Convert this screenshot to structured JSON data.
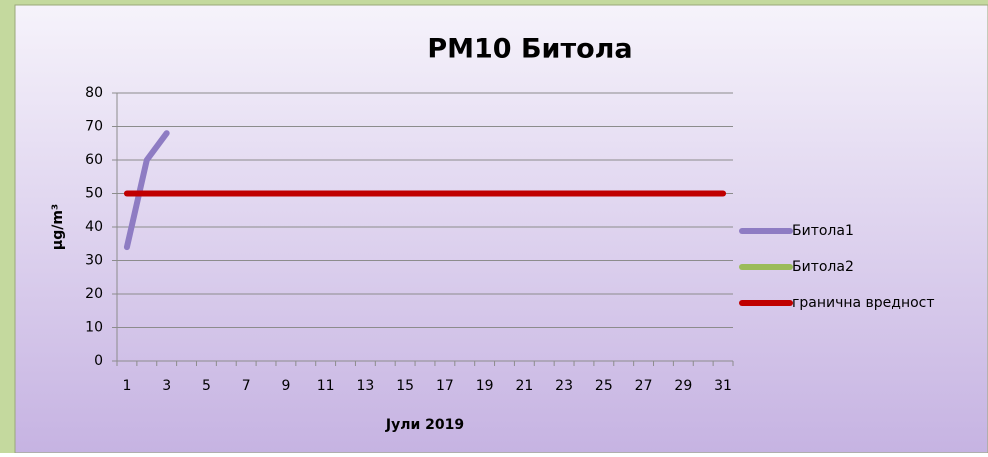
{
  "chart_data": {
    "type": "line",
    "title": "PM10 Битола",
    "x_label": "Јули 2019",
    "y_label": "µg/m³",
    "categories": [
      "1",
      null,
      "3",
      null,
      "5",
      null,
      "7",
      null,
      "9",
      null,
      "11",
      null,
      "13",
      null,
      "15",
      null,
      "17",
      null,
      "19",
      null,
      "21",
      null,
      "23",
      null,
      "25",
      null,
      "27",
      null,
      "29",
      null,
      "31"
    ],
    "series": [
      {
        "name": "Битола1",
        "color": "#8e7cc3",
        "values": [
          34,
          60,
          68,
          null,
          null,
          null,
          null,
          null,
          null,
          null,
          null,
          null,
          null,
          null,
          null,
          null,
          null,
          null,
          null,
          null,
          null,
          null,
          null,
          null,
          null,
          null,
          null,
          null,
          null,
          null,
          null
        ]
      },
      {
        "name": "Битола2",
        "color": "#9bbb59",
        "values": [
          null,
          null,
          null,
          null,
          null,
          null,
          null,
          null,
          null,
          null,
          null,
          null,
          null,
          null,
          null,
          null,
          null,
          null,
          null,
          null,
          null,
          null,
          null,
          null,
          null,
          null,
          null,
          null,
          null,
          null,
          null
        ]
      },
      {
        "name": "гранична вредност",
        "color": "#c00000",
        "values": [
          50,
          50,
          50,
          50,
          50,
          50,
          50,
          50,
          50,
          50,
          50,
          50,
          50,
          50,
          50,
          50,
          50,
          50,
          50,
          50,
          50,
          50,
          50,
          50,
          50,
          50,
          50,
          50,
          50,
          50,
          50
        ]
      }
    ],
    "ylim": [
      0,
      80
    ],
    "yticks": [
      0,
      10,
      20,
      30,
      40,
      50,
      60,
      70,
      80
    ],
    "grid": true,
    "legend": "right"
  }
}
